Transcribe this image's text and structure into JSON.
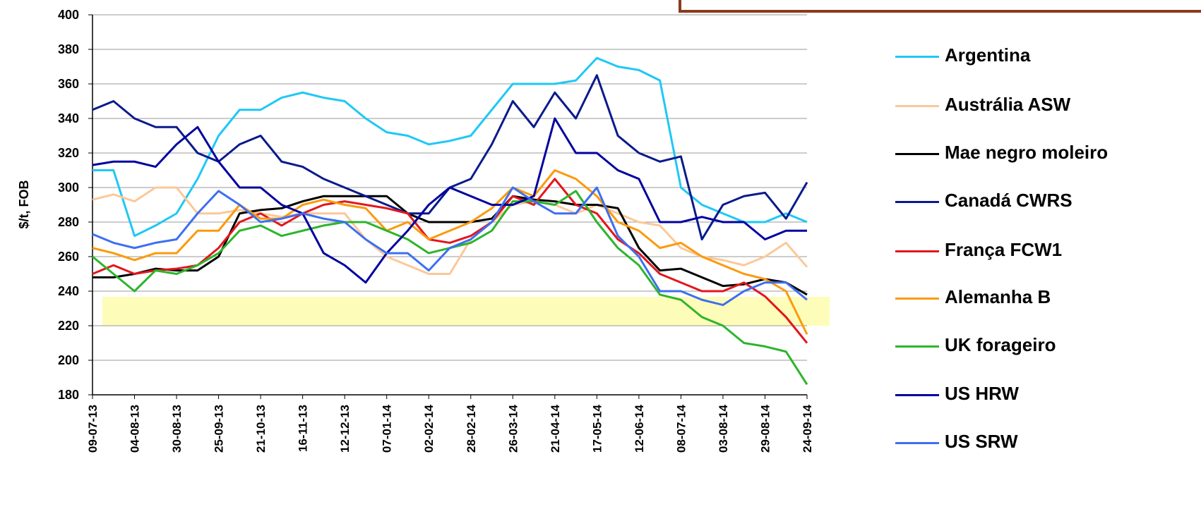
{
  "chart_data": {
    "type": "line",
    "ylabel": "$/t, FOB",
    "categories": [
      "09-07-13",
      null,
      "04-08-13",
      null,
      "30-08-13",
      null,
      "25-09-13",
      null,
      "21-10-13",
      null,
      "16-11-13",
      null,
      "12-12-13",
      null,
      "07-01-14",
      null,
      "02-02-14",
      null,
      "28-02-14",
      null,
      "26-03-14",
      null,
      "21-04-14",
      null,
      "17-05-14",
      null,
      "12-06-14",
      null,
      "08-07-14",
      null,
      "03-08-14",
      null,
      "29-08-14",
      null,
      "24-09-14"
    ],
    "ylim": [
      180,
      400
    ],
    "yticks": [
      180,
      200,
      220,
      240,
      260,
      280,
      300,
      320,
      340,
      360,
      380,
      400
    ],
    "grid": true,
    "series": [
      {
        "name": "Argentina",
        "color": "#1fc8f5",
        "values": [
          310,
          310,
          272,
          278,
          285,
          305,
          330,
          345,
          345,
          352,
          355,
          352,
          350,
          340,
          332,
          330,
          325,
          327,
          330,
          345,
          360,
          360,
          360,
          362,
          375,
          370,
          368,
          362,
          300,
          290,
          285,
          280,
          280,
          285,
          280
        ]
      },
      {
        "name": "Austrália ASW",
        "color": "#fbc89a",
        "values": [
          293,
          296,
          292,
          300,
          300,
          285,
          285,
          287,
          285,
          283,
          285,
          285,
          285,
          270,
          260,
          255,
          250,
          250,
          270,
          280,
          290,
          292,
          290,
          285,
          290,
          285,
          280,
          278,
          265,
          260,
          258,
          255,
          260,
          268,
          254
        ]
      },
      {
        "name": "Mae negro moleiro",
        "color": "#000000",
        "values": [
          248,
          248,
          250,
          253,
          252,
          252,
          260,
          285,
          287,
          288,
          292,
          295,
          295,
          295,
          295,
          285,
          280,
          280,
          280,
          282,
          295,
          293,
          292,
          290,
          290,
          288,
          265,
          252,
          253,
          248,
          243,
          244,
          247,
          245,
          238
        ]
      },
      {
        "name": "Canadá CWRS",
        "color": "#0a1a8c",
        "values": [
          345,
          350,
          340,
          335,
          335,
          320,
          315,
          325,
          330,
          315,
          312,
          305,
          300,
          295,
          290,
          285,
          285,
          300,
          305,
          325,
          350,
          335,
          355,
          340,
          365,
          330,
          320,
          315,
          318,
          270,
          290,
          295,
          297,
          282,
          303
        ]
      },
      {
        "name": "França FCW1",
        "color": "#e2171c",
        "values": [
          250,
          255,
          250,
          252,
          253,
          255,
          265,
          280,
          285,
          278,
          285,
          290,
          292,
          290,
          288,
          285,
          270,
          268,
          272,
          280,
          295,
          290,
          305,
          290,
          285,
          270,
          262,
          250,
          245,
          240,
          240,
          245,
          237,
          225,
          210
        ]
      },
      {
        "name": "Alemanha B",
        "color": "#fb9a0c",
        "values": [
          265,
          262,
          258,
          262,
          262,
          275,
          275,
          290,
          282,
          282,
          290,
          293,
          290,
          288,
          275,
          280,
          270,
          275,
          280,
          288,
          300,
          295,
          310,
          305,
          295,
          280,
          275,
          265,
          268,
          260,
          255,
          250,
          247,
          240,
          215
        ]
      },
      {
        "name": "UK forageiro",
        "color": "#2cb52c",
        "values": [
          260,
          250,
          240,
          252,
          250,
          255,
          262,
          275,
          278,
          272,
          275,
          278,
          280,
          280,
          275,
          270,
          262,
          265,
          268,
          275,
          292,
          292,
          290,
          298,
          280,
          265,
          255,
          238,
          235,
          225,
          220,
          210,
          208,
          205,
          186
        ]
      },
      {
        "name": "US HRW",
        "color": "#0000a0",
        "values": [
          313,
          315,
          315,
          312,
          325,
          335,
          315,
          300,
          300,
          290,
          285,
          262,
          255,
          245,
          262,
          275,
          290,
          300,
          295,
          290,
          290,
          295,
          340,
          320,
          320,
          310,
          305,
          280,
          280,
          283,
          280,
          280,
          270,
          275,
          275
        ]
      },
      {
        "name": "US SRW",
        "color": "#3d6ff0",
        "values": [
          273,
          268,
          265,
          268,
          270,
          285,
          298,
          290,
          280,
          282,
          285,
          282,
          280,
          270,
          262,
          262,
          252,
          265,
          270,
          280,
          300,
          292,
          285,
          285,
          300,
          272,
          260,
          240,
          240,
          235,
          232,
          240,
          245,
          245,
          235
        ]
      }
    ]
  }
}
